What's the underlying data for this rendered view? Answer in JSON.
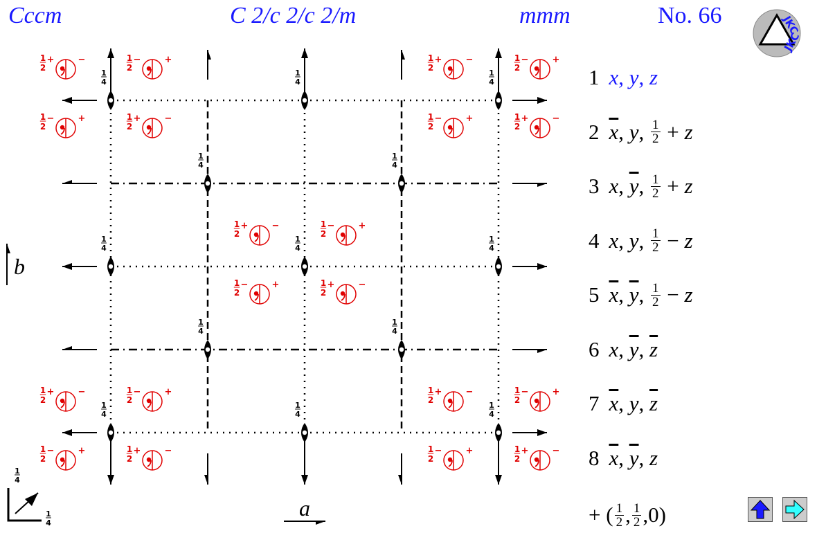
{
  "header": {
    "symbol": "Cccm",
    "full_symbol": "C 2/c 2/c 2/m",
    "point_group": "mmm",
    "number": "No. 66"
  },
  "logo": "JKC",
  "diagram": {
    "axis_a": "a",
    "axis_b": "b",
    "height": {
      "num": "1",
      "den": "4"
    },
    "half": {
      "num": "1",
      "den": "2"
    },
    "plus": "+",
    "minus": "−"
  },
  "positions": [
    {
      "number": "1",
      "color": "#1a1aff",
      "coords": [
        "x",
        ", ",
        "y",
        ", ",
        "z"
      ]
    },
    {
      "number": "2",
      "coords": [
        {
          "bar": "x"
        },
        ", ",
        "y",
        ", ",
        {
          "num": "1",
          "den": "2"
        },
        " + ",
        "z"
      ]
    },
    {
      "number": "3",
      "coords": [
        "x",
        ", ",
        {
          "bar": "y"
        },
        ", ",
        {
          "num": "1",
          "den": "2"
        },
        " + ",
        "z"
      ]
    },
    {
      "number": "4",
      "coords": [
        "x",
        ", ",
        "y",
        ", ",
        {
          "num": "1",
          "den": "2"
        },
        " − ",
        "z"
      ]
    },
    {
      "number": "5",
      "coords": [
        {
          "bar": "x"
        },
        ", ",
        {
          "bar": "y"
        },
        ", ",
        {
          "num": "1",
          "den": "2"
        },
        " − ",
        "z"
      ]
    },
    {
      "number": "6",
      "coords": [
        "x",
        ", ",
        {
          "bar": "y"
        },
        ", ",
        {
          "bar": "z"
        }
      ]
    },
    {
      "number": "7",
      "coords": [
        {
          "bar": "x"
        },
        ", ",
        "y",
        ", ",
        {
          "bar": "z"
        }
      ]
    },
    {
      "number": "8",
      "coords": [
        {
          "bar": "x"
        },
        ", ",
        {
          "bar": "y"
        },
        ", ",
        "z"
      ]
    }
  ],
  "centering": [
    "+ (",
    {
      "num": "1",
      "den": "2"
    },
    ",",
    {
      "num": "1",
      "den": "2"
    },
    ",0)"
  ]
}
